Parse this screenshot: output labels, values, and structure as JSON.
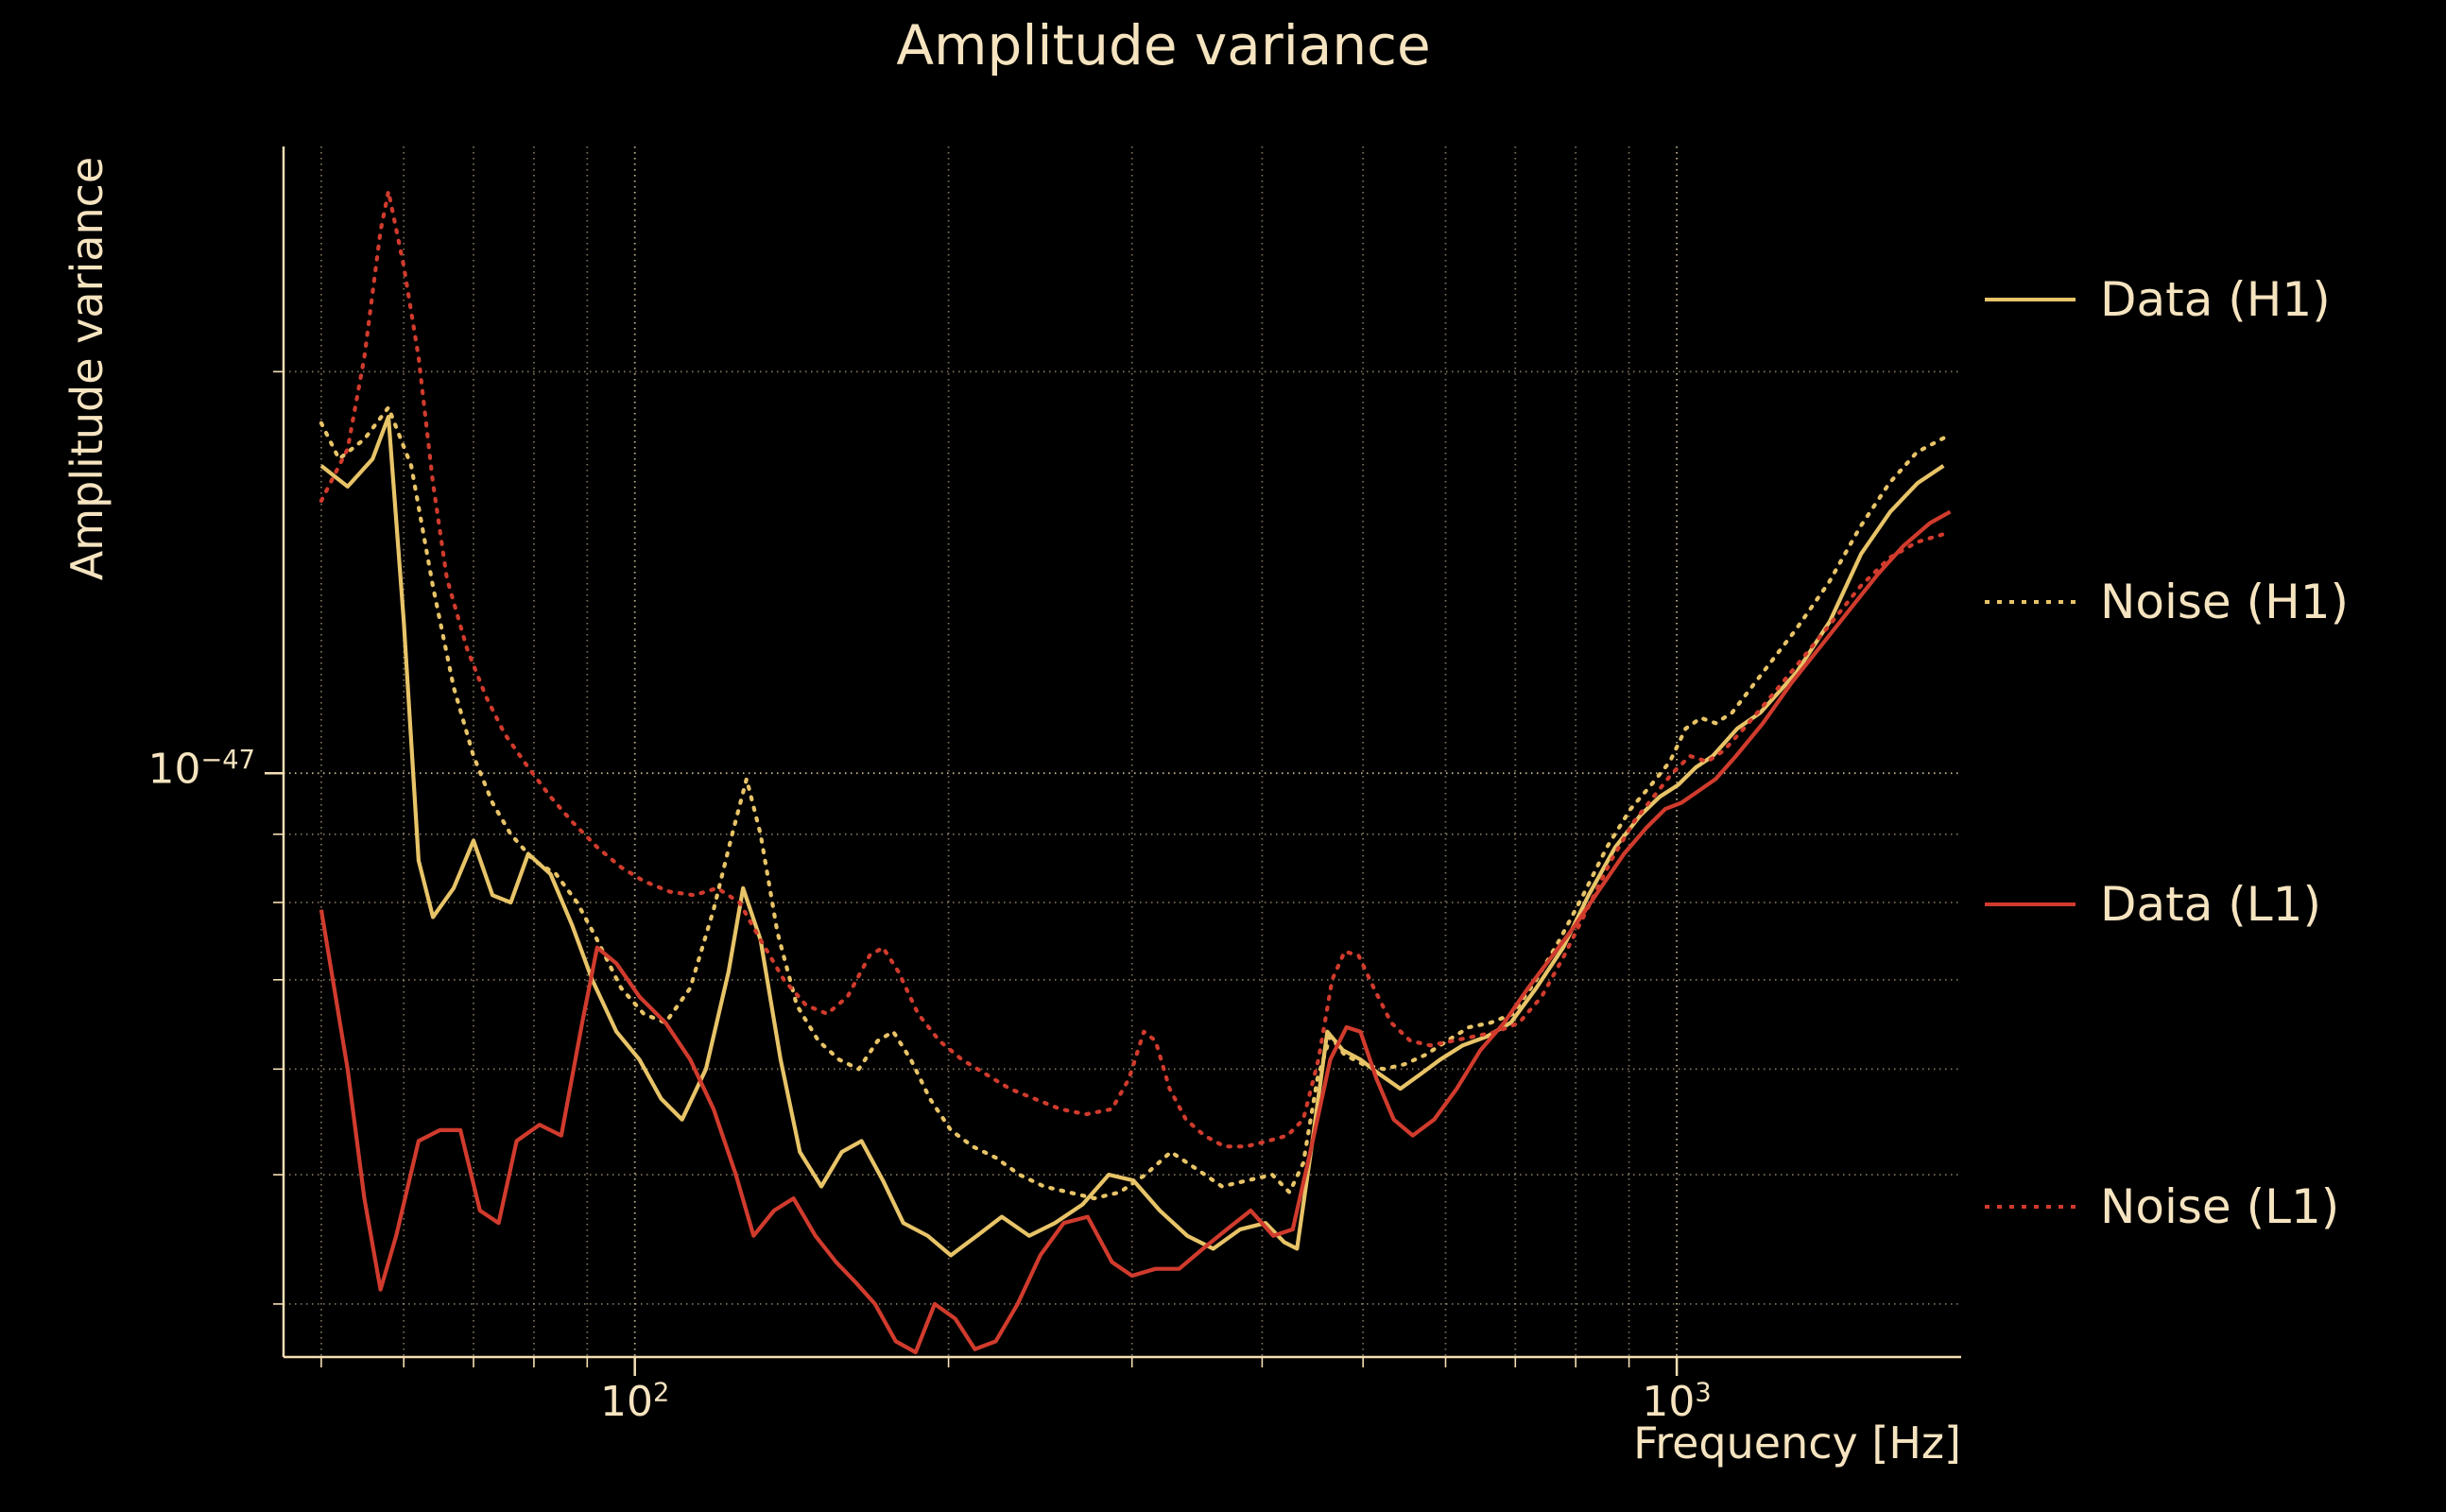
{
  "chart_data": {
    "type": "line",
    "title": "Amplitude variance",
    "xlabel": "Frequency [Hz]",
    "ylabel": "Amplitude variance",
    "xscale": "log",
    "yscale": "log",
    "xlim": [
      46,
      1875
    ],
    "ylim": [
      3.65e-48,
      2.95e-47
    ],
    "legend_position": "right-outside",
    "grid": true,
    "value_scale": 1e-48,
    "colors": {
      "background": "#000000",
      "text": "#f6e4c0",
      "grid": "#f5deb3",
      "axis": "#f5deb3",
      "gold": "#e8c468",
      "red": "#d03b2d"
    },
    "x_gridlines": [
      50,
      60,
      70,
      80,
      90,
      100,
      200,
      300,
      400,
      500,
      600,
      700,
      800,
      900,
      1000
    ],
    "x_major": [
      100,
      1000
    ],
    "y_gridlines": [
      4e-48,
      5e-48,
      6e-48,
      7e-48,
      8e-48,
      9e-48,
      1e-47,
      2e-47
    ],
    "y_major": [
      1e-47
    ],
    "x_ticks": [
      {
        "base": "10",
        "exp": "2",
        "value": 100
      },
      {
        "base": "10",
        "exp": "3",
        "value": 1000
      }
    ],
    "y_ticks": [
      {
        "base": "10",
        "exp": "−47",
        "value": 1e-47
      }
    ],
    "series": [
      {
        "name": "Data (H1)",
        "color": "#e8c468",
        "style": "solid",
        "points": [
          [
            50,
            17.0
          ],
          [
            53,
            16.4
          ],
          [
            56,
            17.2
          ],
          [
            58,
            18.5
          ],
          [
            60,
            13.0
          ],
          [
            62,
            8.6
          ],
          [
            64,
            7.8
          ],
          [
            67,
            8.2
          ],
          [
            70,
            8.9
          ],
          [
            73,
            8.1
          ],
          [
            76,
            8.0
          ],
          [
            79,
            8.7
          ],
          [
            83,
            8.4
          ],
          [
            87,
            7.7
          ],
          [
            91,
            7.0
          ],
          [
            96,
            6.4
          ],
          [
            101,
            6.1
          ],
          [
            106,
            5.7
          ],
          [
            111,
            5.5
          ],
          [
            117,
            6.0
          ],
          [
            123,
            7.1
          ],
          [
            127,
            8.2
          ],
          [
            132,
            7.5
          ],
          [
            138,
            6.1
          ],
          [
            144,
            5.2
          ],
          [
            151,
            4.9
          ],
          [
            158,
            5.2
          ],
          [
            165,
            5.3
          ],
          [
            173,
            4.95
          ],
          [
            181,
            4.6
          ],
          [
            191,
            4.5
          ],
          [
            201,
            4.35
          ],
          [
            213,
            4.5
          ],
          [
            225,
            4.65
          ],
          [
            239,
            4.5
          ],
          [
            253,
            4.6
          ],
          [
            269,
            4.75
          ],
          [
            285,
            5.0
          ],
          [
            301,
            4.95
          ],
          [
            319,
            4.7
          ],
          [
            339,
            4.5
          ],
          [
            359,
            4.4
          ],
          [
            381,
            4.55
          ],
          [
            403,
            4.6
          ],
          [
            420,
            4.45
          ],
          [
            432,
            4.4
          ],
          [
            447,
            5.3
          ],
          [
            462,
            6.4
          ],
          [
            478,
            6.2
          ],
          [
            497,
            6.1
          ],
          [
            518,
            5.95
          ],
          [
            543,
            5.8
          ],
          [
            568,
            5.95
          ],
          [
            593,
            6.1
          ],
          [
            623,
            6.25
          ],
          [
            658,
            6.35
          ],
          [
            693,
            6.5
          ],
          [
            733,
            6.9
          ],
          [
            778,
            7.4
          ],
          [
            823,
            8.1
          ],
          [
            873,
            8.8
          ],
          [
            923,
            9.3
          ],
          [
            963,
            9.6
          ],
          [
            1003,
            9.8
          ],
          [
            1043,
            10.1
          ],
          [
            1083,
            10.3
          ],
          [
            1143,
            10.8
          ],
          [
            1203,
            11.1
          ],
          [
            1303,
            11.9
          ],
          [
            1403,
            13.0
          ],
          [
            1503,
            14.6
          ],
          [
            1603,
            15.7
          ],
          [
            1703,
            16.5
          ],
          [
            1803,
            17.0
          ]
        ]
      },
      {
        "name": "Noise (H1)",
        "color": "#e8c468",
        "style": "dotted",
        "points": [
          [
            50,
            18.3
          ],
          [
            52,
            17.2
          ],
          [
            55,
            17.8
          ],
          [
            58,
            18.8
          ],
          [
            61,
            17.0
          ],
          [
            64,
            13.8
          ],
          [
            67,
            11.6
          ],
          [
            70,
            10.3
          ],
          [
            73,
            9.5
          ],
          [
            76,
            9.0
          ],
          [
            80,
            8.6
          ],
          [
            84,
            8.4
          ],
          [
            88,
            8.0
          ],
          [
            92,
            7.5
          ],
          [
            97,
            6.9
          ],
          [
            102,
            6.6
          ],
          [
            107,
            6.5
          ],
          [
            113,
            6.9
          ],
          [
            119,
            7.9
          ],
          [
            124,
            9.0
          ],
          [
            128,
            9.9
          ],
          [
            132,
            9.0
          ],
          [
            137,
            7.6
          ],
          [
            143,
            6.7
          ],
          [
            150,
            6.3
          ],
          [
            157,
            6.1
          ],
          [
            164,
            6.0
          ],
          [
            171,
            6.3
          ],
          [
            177,
            6.4
          ],
          [
            184,
            6.1
          ],
          [
            192,
            5.7
          ],
          [
            201,
            5.4
          ],
          [
            211,
            5.25
          ],
          [
            222,
            5.15
          ],
          [
            234,
            5.0
          ],
          [
            247,
            4.9
          ],
          [
            261,
            4.85
          ],
          [
            276,
            4.8
          ],
          [
            292,
            4.85
          ],
          [
            309,
            5.0
          ],
          [
            327,
            5.2
          ],
          [
            346,
            5.05
          ],
          [
            366,
            4.9
          ],
          [
            387,
            4.95
          ],
          [
            409,
            5.0
          ],
          [
            425,
            4.85
          ],
          [
            438,
            5.1
          ],
          [
            452,
            5.9
          ],
          [
            465,
            6.35
          ],
          [
            480,
            6.15
          ],
          [
            500,
            6.05
          ],
          [
            523,
            6.0
          ],
          [
            548,
            6.05
          ],
          [
            574,
            6.15
          ],
          [
            602,
            6.3
          ],
          [
            632,
            6.45
          ],
          [
            663,
            6.5
          ],
          [
            696,
            6.6
          ],
          [
            733,
            7.0
          ],
          [
            772,
            7.5
          ],
          [
            813,
            8.1
          ],
          [
            857,
            8.8
          ],
          [
            903,
            9.4
          ],
          [
            945,
            9.8
          ],
          [
            985,
            10.2
          ],
          [
            1020,
            10.8
          ],
          [
            1055,
            11.0
          ],
          [
            1090,
            10.9
          ],
          [
            1130,
            11.1
          ],
          [
            1200,
            11.8
          ],
          [
            1300,
            12.8
          ],
          [
            1400,
            13.9
          ],
          [
            1500,
            15.3
          ],
          [
            1600,
            16.5
          ],
          [
            1700,
            17.4
          ],
          [
            1820,
            17.9
          ]
        ]
      },
      {
        "name": "Data (L1)",
        "color": "#d03b2d",
        "style": "solid",
        "points": [
          [
            50,
            7.9
          ],
          [
            53,
            6.0
          ],
          [
            55,
            4.8
          ],
          [
            57,
            4.1
          ],
          [
            59,
            4.5
          ],
          [
            62,
            5.3
          ],
          [
            65,
            5.4
          ],
          [
            68,
            5.4
          ],
          [
            71,
            4.7
          ],
          [
            74,
            4.6
          ],
          [
            77,
            5.3
          ],
          [
            81,
            5.45
          ],
          [
            85,
            5.35
          ],
          [
            89,
            6.5
          ],
          [
            92,
            7.4
          ],
          [
            96,
            7.2
          ],
          [
            101,
            6.8
          ],
          [
            107,
            6.5
          ],
          [
            113,
            6.1
          ],
          [
            119,
            5.6
          ],
          [
            125,
            5.0
          ],
          [
            130,
            4.5
          ],
          [
            136,
            4.7
          ],
          [
            142,
            4.8
          ],
          [
            149,
            4.5
          ],
          [
            156,
            4.3
          ],
          [
            163,
            4.15
          ],
          [
            170,
            4.0
          ],
          [
            178,
            3.75
          ],
          [
            186,
            3.68
          ],
          [
            194,
            4.0
          ],
          [
            203,
            3.9
          ],
          [
            212,
            3.7
          ],
          [
            222,
            3.75
          ],
          [
            233,
            4.0
          ],
          [
            245,
            4.35
          ],
          [
            258,
            4.6
          ],
          [
            272,
            4.65
          ],
          [
            287,
            4.3
          ],
          [
            300,
            4.2
          ],
          [
            316,
            4.25
          ],
          [
            333,
            4.25
          ],
          [
            351,
            4.4
          ],
          [
            370,
            4.55
          ],
          [
            390,
            4.7
          ],
          [
            410,
            4.5
          ],
          [
            428,
            4.55
          ],
          [
            445,
            5.2
          ],
          [
            465,
            6.1
          ],
          [
            482,
            6.45
          ],
          [
            497,
            6.4
          ],
          [
            515,
            5.9
          ],
          [
            535,
            5.5
          ],
          [
            558,
            5.35
          ],
          [
            585,
            5.5
          ],
          [
            615,
            5.8
          ],
          [
            648,
            6.2
          ],
          [
            683,
            6.5
          ],
          [
            720,
            6.9
          ],
          [
            760,
            7.3
          ],
          [
            800,
            7.7
          ],
          [
            845,
            8.2
          ],
          [
            890,
            8.7
          ],
          [
            935,
            9.1
          ],
          [
            975,
            9.4
          ],
          [
            1010,
            9.5
          ],
          [
            1050,
            9.7
          ],
          [
            1090,
            9.9
          ],
          [
            1140,
            10.3
          ],
          [
            1210,
            10.9
          ],
          [
            1290,
            11.7
          ],
          [
            1380,
            12.5
          ],
          [
            1470,
            13.3
          ],
          [
            1560,
            14.1
          ],
          [
            1650,
            14.8
          ],
          [
            1750,
            15.4
          ],
          [
            1830,
            15.7
          ]
        ]
      },
      {
        "name": "Noise (L1)",
        "color": "#d03b2d",
        "style": "dotted",
        "points": [
          [
            50,
            16.0
          ],
          [
            53,
            17.5
          ],
          [
            55,
            20.5
          ],
          [
            57,
            25.5
          ],
          [
            58,
            27.3
          ],
          [
            60,
            24.0
          ],
          [
            62,
            20.5
          ],
          [
            64,
            16.5
          ],
          [
            66,
            14.0
          ],
          [
            69,
            12.4
          ],
          [
            72,
            11.4
          ],
          [
            75,
            10.7
          ],
          [
            79,
            10.1
          ],
          [
            83,
            9.6
          ],
          [
            87,
            9.2
          ],
          [
            92,
            8.8
          ],
          [
            97,
            8.5
          ],
          [
            102,
            8.3
          ],
          [
            108,
            8.15
          ],
          [
            114,
            8.1
          ],
          [
            120,
            8.2
          ],
          [
            126,
            8.0
          ],
          [
            132,
            7.5
          ],
          [
            139,
            7.0
          ],
          [
            146,
            6.7
          ],
          [
            153,
            6.6
          ],
          [
            160,
            6.8
          ],
          [
            168,
            7.3
          ],
          [
            173,
            7.4
          ],
          [
            179,
            7.1
          ],
          [
            187,
            6.6
          ],
          [
            196,
            6.3
          ],
          [
            206,
            6.1
          ],
          [
            217,
            5.95
          ],
          [
            229,
            5.8
          ],
          [
            242,
            5.7
          ],
          [
            256,
            5.6
          ],
          [
            271,
            5.55
          ],
          [
            287,
            5.6
          ],
          [
            298,
            5.9
          ],
          [
            308,
            6.4
          ],
          [
            316,
            6.3
          ],
          [
            326,
            5.8
          ],
          [
            338,
            5.5
          ],
          [
            352,
            5.35
          ],
          [
            368,
            5.25
          ],
          [
            386,
            5.25
          ],
          [
            405,
            5.3
          ],
          [
            423,
            5.35
          ],
          [
            438,
            5.5
          ],
          [
            453,
            6.1
          ],
          [
            467,
            7.0
          ],
          [
            480,
            7.35
          ],
          [
            495,
            7.3
          ],
          [
            512,
            6.9
          ],
          [
            532,
            6.5
          ],
          [
            555,
            6.3
          ],
          [
            580,
            6.25
          ],
          [
            610,
            6.3
          ],
          [
            640,
            6.35
          ],
          [
            672,
            6.4
          ],
          [
            706,
            6.5
          ],
          [
            742,
            6.8
          ],
          [
            780,
            7.3
          ],
          [
            820,
            7.9
          ],
          [
            865,
            8.6
          ],
          [
            910,
            9.2
          ],
          [
            950,
            9.6
          ],
          [
            990,
            10.0
          ],
          [
            1030,
            10.3
          ],
          [
            1070,
            10.2
          ],
          [
            1110,
            10.4
          ],
          [
            1160,
            10.8
          ],
          [
            1230,
            11.4
          ],
          [
            1310,
            12.1
          ],
          [
            1400,
            12.9
          ],
          [
            1500,
            13.8
          ],
          [
            1600,
            14.5
          ],
          [
            1700,
            14.9
          ],
          [
            1800,
            15.1
          ]
        ]
      }
    ]
  }
}
